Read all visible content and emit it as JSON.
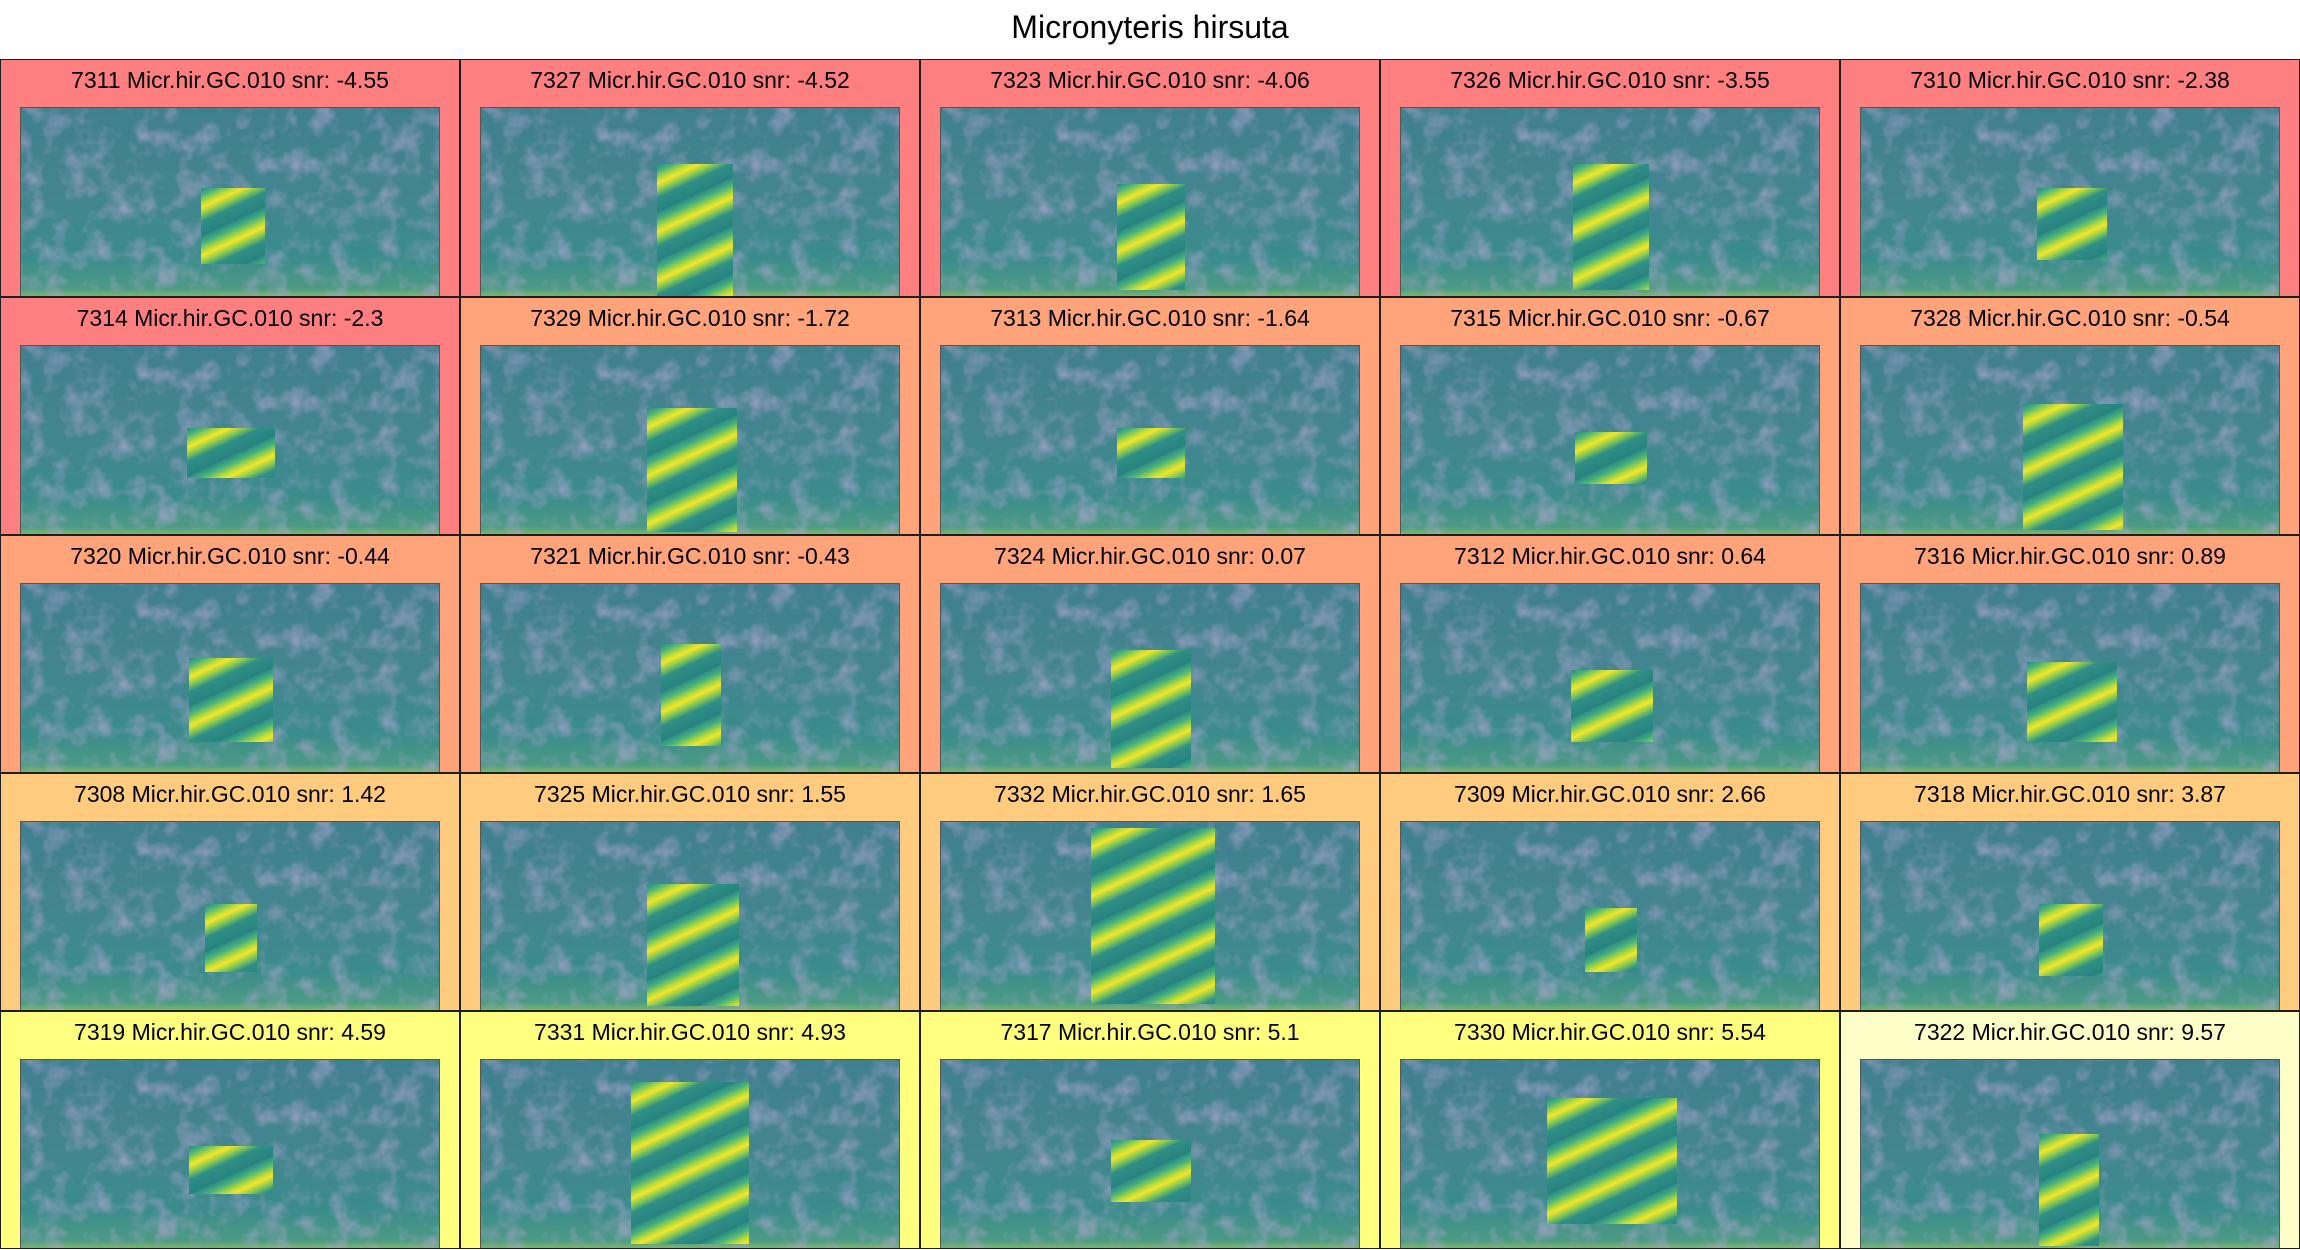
{
  "title": "Micronyteris hirsuta",
  "colors": {
    "background": "#ffffff",
    "row_colors": [
      "#fe7f7f",
      "#fea37a",
      "#fecb7f",
      "#fefe7f",
      "#fefec8"
    ]
  },
  "panels": [
    {
      "id": "7311",
      "label": "Micr.hir.GC.010",
      "snr": "-4.55",
      "bg": "#fe7f7f"
    },
    {
      "id": "7327",
      "label": "Micr.hir.GC.010",
      "snr": "-4.52",
      "bg": "#fe7f7f"
    },
    {
      "id": "7323",
      "label": "Micr.hir.GC.010",
      "snr": "-4.06",
      "bg": "#fe7f7f"
    },
    {
      "id": "7326",
      "label": "Micr.hir.GC.010",
      "snr": "-3.55",
      "bg": "#fe7f7f"
    },
    {
      "id": "7310",
      "label": "Micr.hir.GC.010",
      "snr": "-2.38",
      "bg": "#fe7f7f"
    },
    {
      "id": "7314",
      "label": "Micr.hir.GC.010",
      "snr": "-2.3",
      "bg": "#fe7f7f"
    },
    {
      "id": "7329",
      "label": "Micr.hir.GC.010",
      "snr": "-1.72",
      "bg": "#fea37a"
    },
    {
      "id": "7313",
      "label": "Micr.hir.GC.010",
      "snr": "-1.64",
      "bg": "#fea37a"
    },
    {
      "id": "7315",
      "label": "Micr.hir.GC.010",
      "snr": "-0.67",
      "bg": "#fea37a"
    },
    {
      "id": "7328",
      "label": "Micr.hir.GC.010",
      "snr": "-0.54",
      "bg": "#fea37a"
    },
    {
      "id": "7320",
      "label": "Micr.hir.GC.010",
      "snr": "-0.44",
      "bg": "#fea37a"
    },
    {
      "id": "7321",
      "label": "Micr.hir.GC.010",
      "snr": "-0.43",
      "bg": "#fea37a"
    },
    {
      "id": "7324",
      "label": "Micr.hir.GC.010",
      "snr": "0.07",
      "bg": "#fea37a"
    },
    {
      "id": "7312",
      "label": "Micr.hir.GC.010",
      "snr": "0.64",
      "bg": "#fea37a"
    },
    {
      "id": "7316",
      "label": "Micr.hir.GC.010",
      "snr": "0.89",
      "bg": "#fea37a"
    },
    {
      "id": "7308",
      "label": "Micr.hir.GC.010",
      "snr": "1.42",
      "bg": "#fecb7f"
    },
    {
      "id": "7325",
      "label": "Micr.hir.GC.010",
      "snr": "1.55",
      "bg": "#fecb7f"
    },
    {
      "id": "7332",
      "label": "Micr.hir.GC.010",
      "snr": "1.65",
      "bg": "#fecb7f"
    },
    {
      "id": "7309",
      "label": "Micr.hir.GC.010",
      "snr": "2.66",
      "bg": "#fecb7f"
    },
    {
      "id": "7318",
      "label": "Micr.hir.GC.010",
      "snr": "3.87",
      "bg": "#fecb7f"
    },
    {
      "id": "7319",
      "label": "Micr.hir.GC.010",
      "snr": "4.59",
      "bg": "#fefe7f"
    },
    {
      "id": "7331",
      "label": "Micr.hir.GC.010",
      "snr": "4.93",
      "bg": "#fefe7f"
    },
    {
      "id": "7317",
      "label": "Micr.hir.GC.010",
      "snr": "5.1",
      "bg": "#fefe7f"
    },
    {
      "id": "7330",
      "label": "Micr.hir.GC.010",
      "snr": "5.54",
      "bg": "#fefe7f"
    },
    {
      "id": "7322",
      "label": "Micr.hir.GC.010",
      "snr": "9.57",
      "bg": "#fefec8"
    }
  ]
}
